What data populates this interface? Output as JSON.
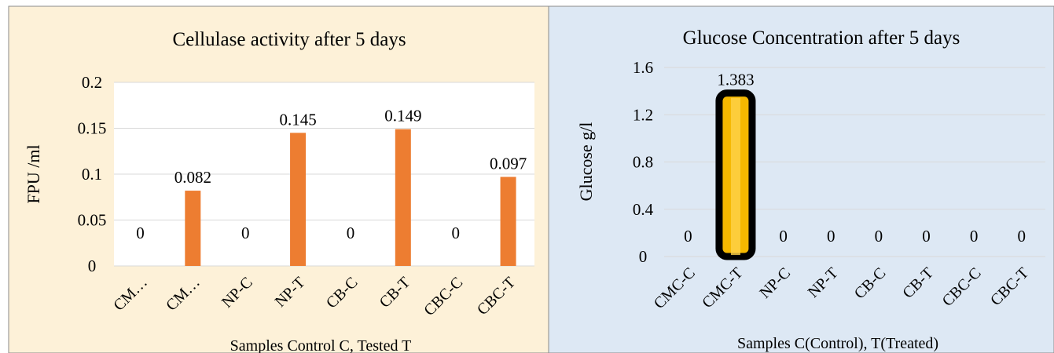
{
  "charts": [
    {
      "type": "bar",
      "title": "Cellulase activity after 5 days",
      "ylabel": "FPU /ml",
      "xlabel": "Samples Control C, Tested T",
      "ylim": [
        0,
        0.2
      ],
      "yticks": [
        "0",
        "0.05",
        "0.1",
        "0.15",
        "0.2"
      ],
      "ytick_values": [
        0,
        0.05,
        0.1,
        0.15,
        0.2
      ],
      "categories": [
        "CM…",
        "CM…",
        "NP-C",
        "NP-T",
        "CB-C",
        "CB-T",
        "CBC-C",
        "CBC-T"
      ],
      "values": [
        0,
        0.082,
        0,
        0.145,
        0,
        0.149,
        0,
        0.097
      ],
      "value_labels": [
        "0",
        "0.082",
        "0",
        "0.145",
        "0",
        "0.149",
        "0",
        "0.097"
      ],
      "bar_color": "#ED7D31",
      "panel_bg": "#FDF1D8",
      "plot_bg": "#FFFFFF",
      "grid": true
    },
    {
      "type": "bar",
      "title": "Glucose Concentration after 5 days",
      "ylabel": "Glucose g/l",
      "xlabel": "Samples C(Control), T(Treated)",
      "ylim": [
        0,
        1.6
      ],
      "yticks": [
        "0",
        "0.4",
        "0.8",
        "1.2",
        "1.6"
      ],
      "ytick_values": [
        0,
        0.4,
        0.8,
        1.2,
        1.6
      ],
      "categories": [
        "CMC-C",
        "CMC-T",
        "NP-C",
        "NP-T",
        "CB-C",
        "CB-T",
        "CBC-C",
        "CBC-T"
      ],
      "values": [
        0,
        1.383,
        0,
        0,
        0,
        0,
        0,
        0
      ],
      "value_labels": [
        "0",
        "1.383",
        "0",
        "0",
        "0",
        "0",
        "0",
        "0"
      ],
      "bar_color": "#F5B800",
      "bar_outline": "#000000",
      "panel_bg": "#DDE8F4",
      "grid": true
    }
  ]
}
